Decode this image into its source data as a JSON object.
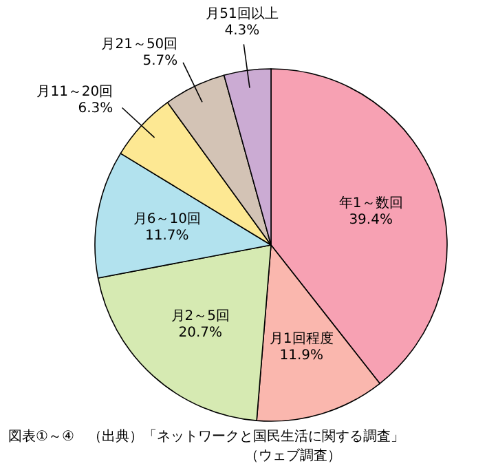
{
  "chart_data": {
    "type": "pie",
    "categories": [
      "年1～数回",
      "月1回程度",
      "月2～5回",
      "月6～10回",
      "月11～20回",
      "月21～50回",
      "月51回以上"
    ],
    "values": [
      39.4,
      11.9,
      20.7,
      11.7,
      6.3,
      5.7,
      4.3
    ],
    "value_labels": [
      "39.4%",
      "11.9%",
      "20.7%",
      "11.7%",
      "6.3%",
      "5.7%",
      "4.3%"
    ],
    "colors": [
      "#f7a1b3",
      "#fab7ae",
      "#d6eab2",
      "#b2e2ee",
      "#fde893",
      "#d3c3b5",
      "#cbabd3"
    ],
    "legend": false,
    "annotations": [
      "図表①～④　（出典）「ネットワークと国民生活に関する調査」",
      "（ウェブ調査）"
    ]
  }
}
